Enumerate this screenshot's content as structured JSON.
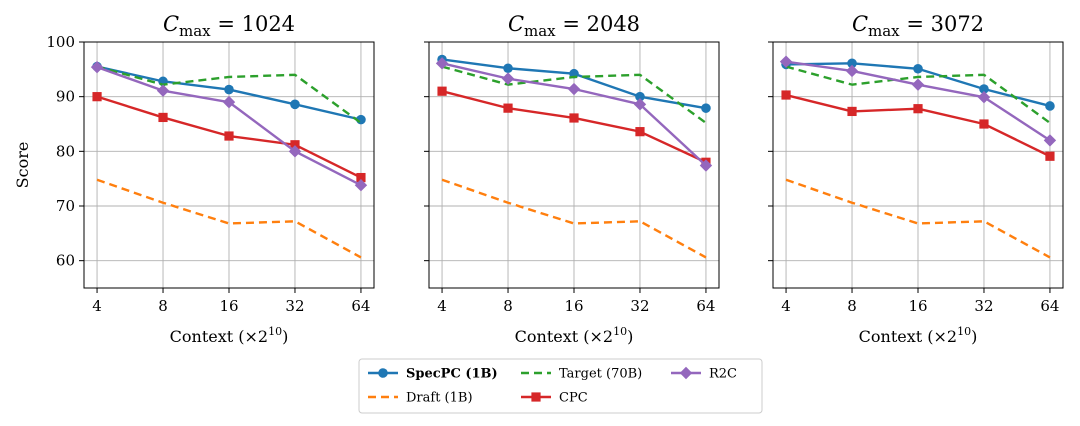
{
  "chart_data": {
    "type": "line",
    "x_categories": [
      "4",
      "8",
      "16",
      "32",
      "64"
    ],
    "xlabel_prefix": "Context",
    "xlabel_mult": "(×2",
    "xlabel_exp": "10",
    "xlabel_close": ")",
    "ylabel": "Score",
    "ylim": [
      55,
      100
    ],
    "yticks": [
      60,
      70,
      80,
      90,
      100
    ],
    "grid": true,
    "colors": {
      "SpecPC (1B)": "#1f77b4",
      "Draft (1B)": "#ff7f0e",
      "Target (70B)": "#2ca02c",
      "CPC": "#d62728",
      "R2C": "#9467bd"
    },
    "panels": [
      {
        "title_var": "C",
        "title_sub": "max",
        "title_eq": " = 1024",
        "series": [
          {
            "name": "SpecPC (1B)",
            "style": "solid",
            "marker": "circle",
            "values": [
              95.5,
              92.8,
              91.3,
              88.6,
              85.8
            ]
          },
          {
            "name": "Draft (1B)",
            "style": "dashed",
            "marker": "none",
            "values": [
              74.8,
              70.6,
              66.8,
              67.2,
              60.6
            ]
          },
          {
            "name": "Target (70B)",
            "style": "dashed",
            "marker": "none",
            "values": [
              95.5,
              92.2,
              93.6,
              94.0,
              85.2
            ]
          },
          {
            "name": "CPC",
            "style": "solid",
            "marker": "square",
            "values": [
              90.0,
              86.2,
              82.8,
              81.2,
              75.2
            ]
          },
          {
            "name": "R2C",
            "style": "solid",
            "marker": "diamond",
            "values": [
              95.4,
              91.1,
              89.0,
              80.0,
              73.8
            ]
          }
        ]
      },
      {
        "title_var": "C",
        "title_sub": "max",
        "title_eq": " = 2048",
        "series": [
          {
            "name": "SpecPC (1B)",
            "style": "solid",
            "marker": "circle",
            "values": [
              96.8,
              95.2,
              94.2,
              90.0,
              87.9
            ]
          },
          {
            "name": "Draft (1B)",
            "style": "dashed",
            "marker": "none",
            "values": [
              74.8,
              70.6,
              66.8,
              67.2,
              60.6
            ]
          },
          {
            "name": "Target (70B)",
            "style": "dashed",
            "marker": "none",
            "values": [
              95.5,
              92.2,
              93.6,
              94.0,
              85.2
            ]
          },
          {
            "name": "CPC",
            "style": "solid",
            "marker": "square",
            "values": [
              91.0,
              87.9,
              86.1,
              83.6,
              78.0
            ]
          },
          {
            "name": "R2C",
            "style": "solid",
            "marker": "diamond",
            "values": [
              96.1,
              93.3,
              91.4,
              88.6,
              77.4
            ]
          }
        ]
      },
      {
        "title_var": "C",
        "title_sub": "max",
        "title_eq": " = 3072",
        "series": [
          {
            "name": "SpecPC (1B)",
            "style": "solid",
            "marker": "circle",
            "values": [
              95.9,
              96.1,
              95.1,
              91.4,
              88.3
            ]
          },
          {
            "name": "Draft (1B)",
            "style": "dashed",
            "marker": "none",
            "values": [
              74.8,
              70.6,
              66.8,
              67.2,
              60.6
            ]
          },
          {
            "name": "Target (70B)",
            "style": "dashed",
            "marker": "none",
            "values": [
              95.5,
              92.2,
              93.6,
              94.0,
              85.2
            ]
          },
          {
            "name": "CPC",
            "style": "solid",
            "marker": "square",
            "values": [
              90.3,
              87.3,
              87.8,
              85.0,
              79.1
            ]
          },
          {
            "name": "R2C",
            "style": "solid",
            "marker": "diamond",
            "values": [
              96.4,
              94.7,
              92.2,
              89.9,
              82.0
            ]
          }
        ]
      }
    ],
    "legend": {
      "placement": "bottom-center",
      "items": [
        {
          "name": "SpecPC (1B)",
          "bold": true
        },
        {
          "name": "Draft (1B)",
          "bold": false
        },
        {
          "name": "Target (70B)",
          "bold": false
        },
        {
          "name": "CPC",
          "bold": false
        },
        {
          "name": "R2C",
          "bold": false
        }
      ]
    }
  }
}
